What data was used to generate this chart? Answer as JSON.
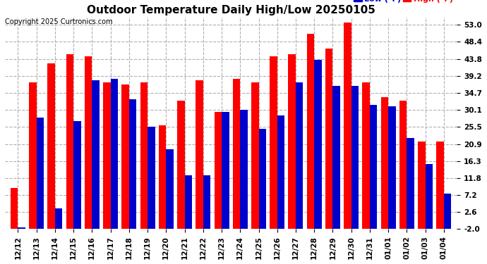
{
  "title": "Outdoor Temperature Daily High/Low 20250105",
  "copyright": "Copyright 2025 Curtronics.com",
  "legend_low": "Low (°F)",
  "legend_high": "High (°F)",
  "dates": [
    "12/12",
    "12/13",
    "12/14",
    "12/15",
    "12/16",
    "12/17",
    "12/18",
    "12/19",
    "12/20",
    "12/21",
    "12/22",
    "12/23",
    "12/24",
    "12/25",
    "12/26",
    "12/27",
    "12/28",
    "12/29",
    "12/30",
    "12/31",
    "01/01",
    "01/02",
    "01/03",
    "01/04"
  ],
  "highs": [
    9.0,
    37.5,
    42.5,
    45.0,
    44.5,
    37.5,
    37.0,
    37.5,
    26.0,
    32.5,
    38.0,
    29.5,
    38.5,
    37.5,
    44.5,
    45.0,
    50.5,
    46.5,
    53.5,
    37.5,
    33.5,
    32.5,
    21.5,
    21.5
  ],
  "lows": [
    -1.5,
    28.0,
    3.5,
    27.0,
    38.0,
    38.5,
    33.0,
    25.5,
    19.5,
    12.5,
    12.5,
    29.5,
    30.0,
    25.0,
    28.5,
    37.5,
    43.5,
    36.5,
    36.5,
    31.5,
    31.0,
    22.5,
    15.5,
    7.5
  ],
  "yticks": [
    -2.0,
    2.6,
    7.2,
    11.8,
    16.3,
    20.9,
    25.5,
    30.1,
    34.7,
    39.2,
    43.8,
    48.4,
    53.0
  ],
  "ymin": -2.0,
  "ymax": 55.0,
  "bar_color_high": "#ff0000",
  "bar_color_low": "#0000cc",
  "background_color": "#ffffff",
  "grid_color": "#b0b0b0",
  "title_fontsize": 11,
  "tick_fontsize": 7.5,
  "copyright_fontsize": 7,
  "legend_fontsize": 8
}
